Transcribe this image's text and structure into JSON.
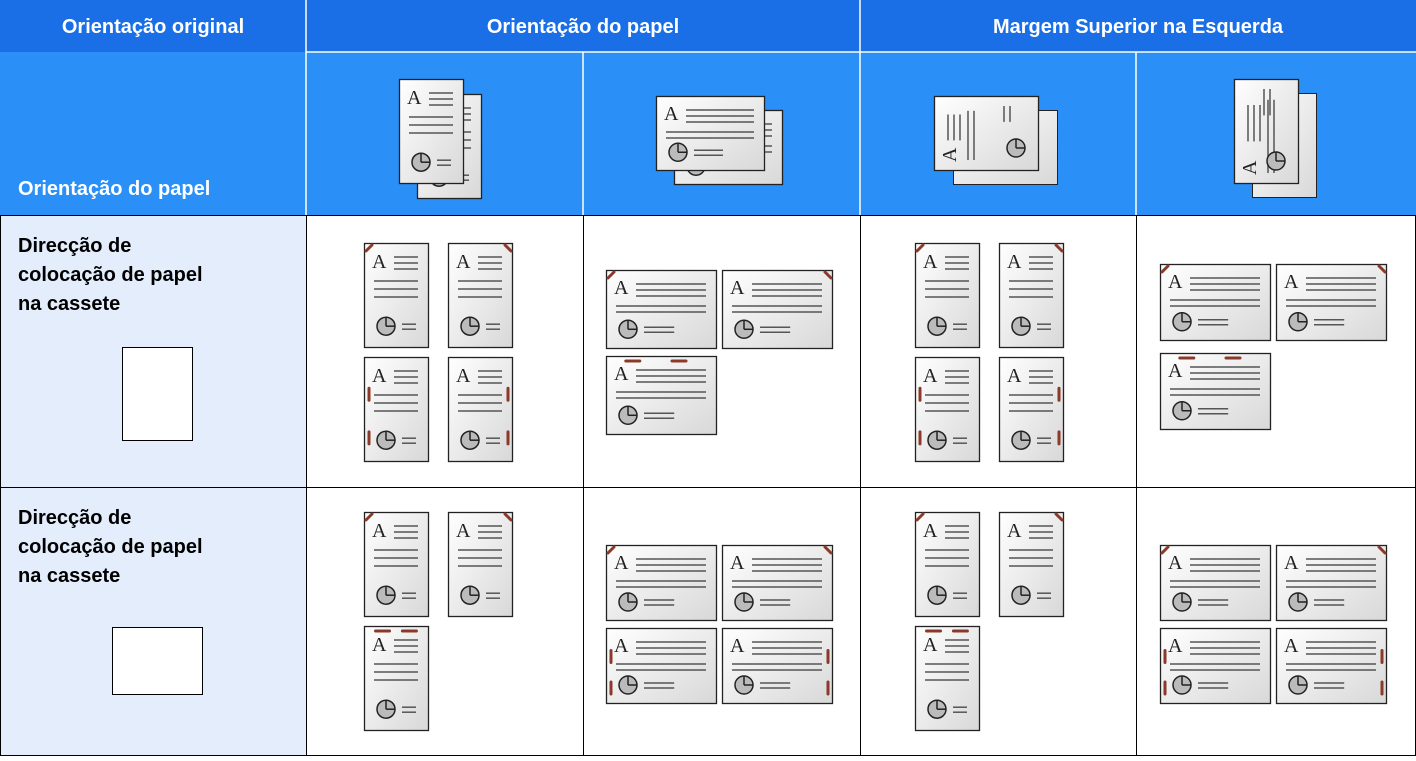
{
  "header": {
    "columns": [
      "Orientação original",
      "Orientação do papel",
      "Margem Superior na Esquerda"
    ],
    "row_header": "Orientação do papel"
  },
  "rows": [
    {
      "label_lines": [
        "Direcção de",
        "colocação de papel",
        "na cassete"
      ]
    },
    {
      "label_lines": [
        "Direcção de",
        "colocação de papel",
        "na cassete"
      ]
    }
  ]
}
